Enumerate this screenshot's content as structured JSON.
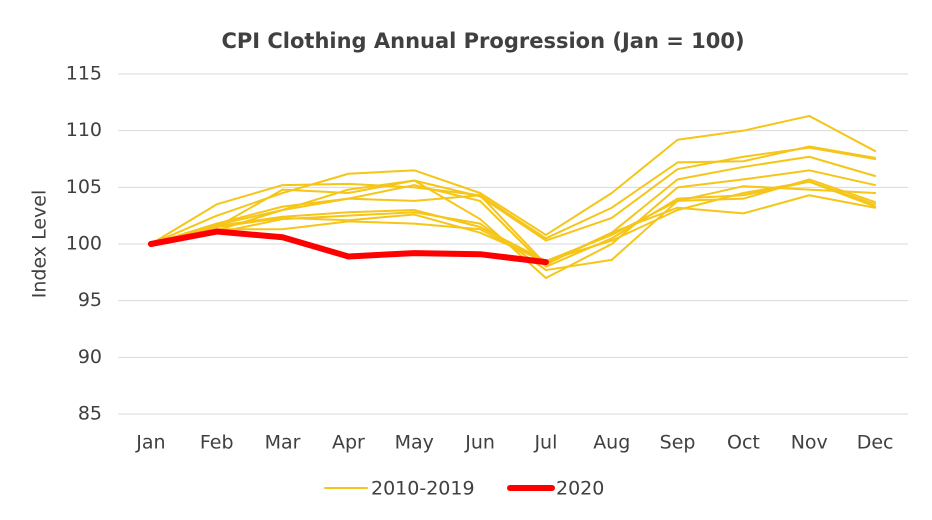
{
  "chart_data": {
    "type": "line",
    "title": "CPI Clothing Annual Progression (Jan = 100)",
    "y_label": "Index Level",
    "categories": [
      "Jan",
      "Feb",
      "Mar",
      "Apr",
      "May",
      "Jun",
      "Jul",
      "Aug",
      "Sep",
      "Oct",
      "Nov",
      "Dec"
    ],
    "series": [
      {
        "name": "2010-2019",
        "color": "#f5c518",
        "values": [
          [
            100,
            102.5,
            104.5,
            106.2,
            106.5,
            104.5,
            100.8,
            104.5,
            109.2,
            110,
            111.3,
            108.2
          ],
          [
            100,
            103.5,
            105.2,
            105.3,
            105.0,
            104.3,
            100.5,
            103.2,
            107.2,
            107.3,
            108.6,
            107.6
          ],
          [
            100,
            101.5,
            104.8,
            104.5,
            105.6,
            104.2,
            100.3,
            102.3,
            106.6,
            107.7,
            108.5,
            107.5
          ],
          [
            100,
            101.8,
            103.3,
            104.0,
            103.8,
            104.3,
            98.2,
            101.0,
            105.7,
            106.8,
            107.7,
            106.0
          ],
          [
            100,
            101.2,
            103.0,
            104.8,
            105.6,
            102.2,
            97.0,
            100.0,
            105.0,
            105.7,
            106.5,
            105.2
          ],
          [
            100,
            101.6,
            102.4,
            102.8,
            103.0,
            101.5,
            98.5,
            100.8,
            103.8,
            105.1,
            104.8,
            104.5
          ],
          [
            100,
            101.0,
            102.2,
            102.5,
            102.8,
            101.8,
            97.7,
            98.6,
            103.8,
            104.0,
            105.7,
            103.7
          ],
          [
            100,
            101.3,
            101.3,
            102.0,
            101.8,
            101.3,
            98.3,
            101.0,
            103.2,
            102.7,
            104.3,
            103.2
          ],
          [
            100,
            101.5,
            102.3,
            102.1,
            102.6,
            101.0,
            98.5,
            100.3,
            103.0,
            104.5,
            105.5,
            103.5
          ],
          [
            100,
            101.7,
            103.0,
            104.0,
            105.2,
            103.8,
            98.0,
            100.5,
            104.0,
            104.3,
            105.5,
            103.3
          ]
        ]
      },
      {
        "name": "2020",
        "color": "#ff0000",
        "values": [
          100,
          101.1,
          100.6,
          98.9,
          99.2,
          99.1,
          98.4,
          null,
          null,
          null,
          null,
          null
        ]
      }
    ],
    "ylim": [
      85,
      115
    ],
    "yticks": [
      85,
      90,
      95,
      100,
      105,
      110,
      115
    ],
    "grid": true,
    "legend": "bottom"
  }
}
